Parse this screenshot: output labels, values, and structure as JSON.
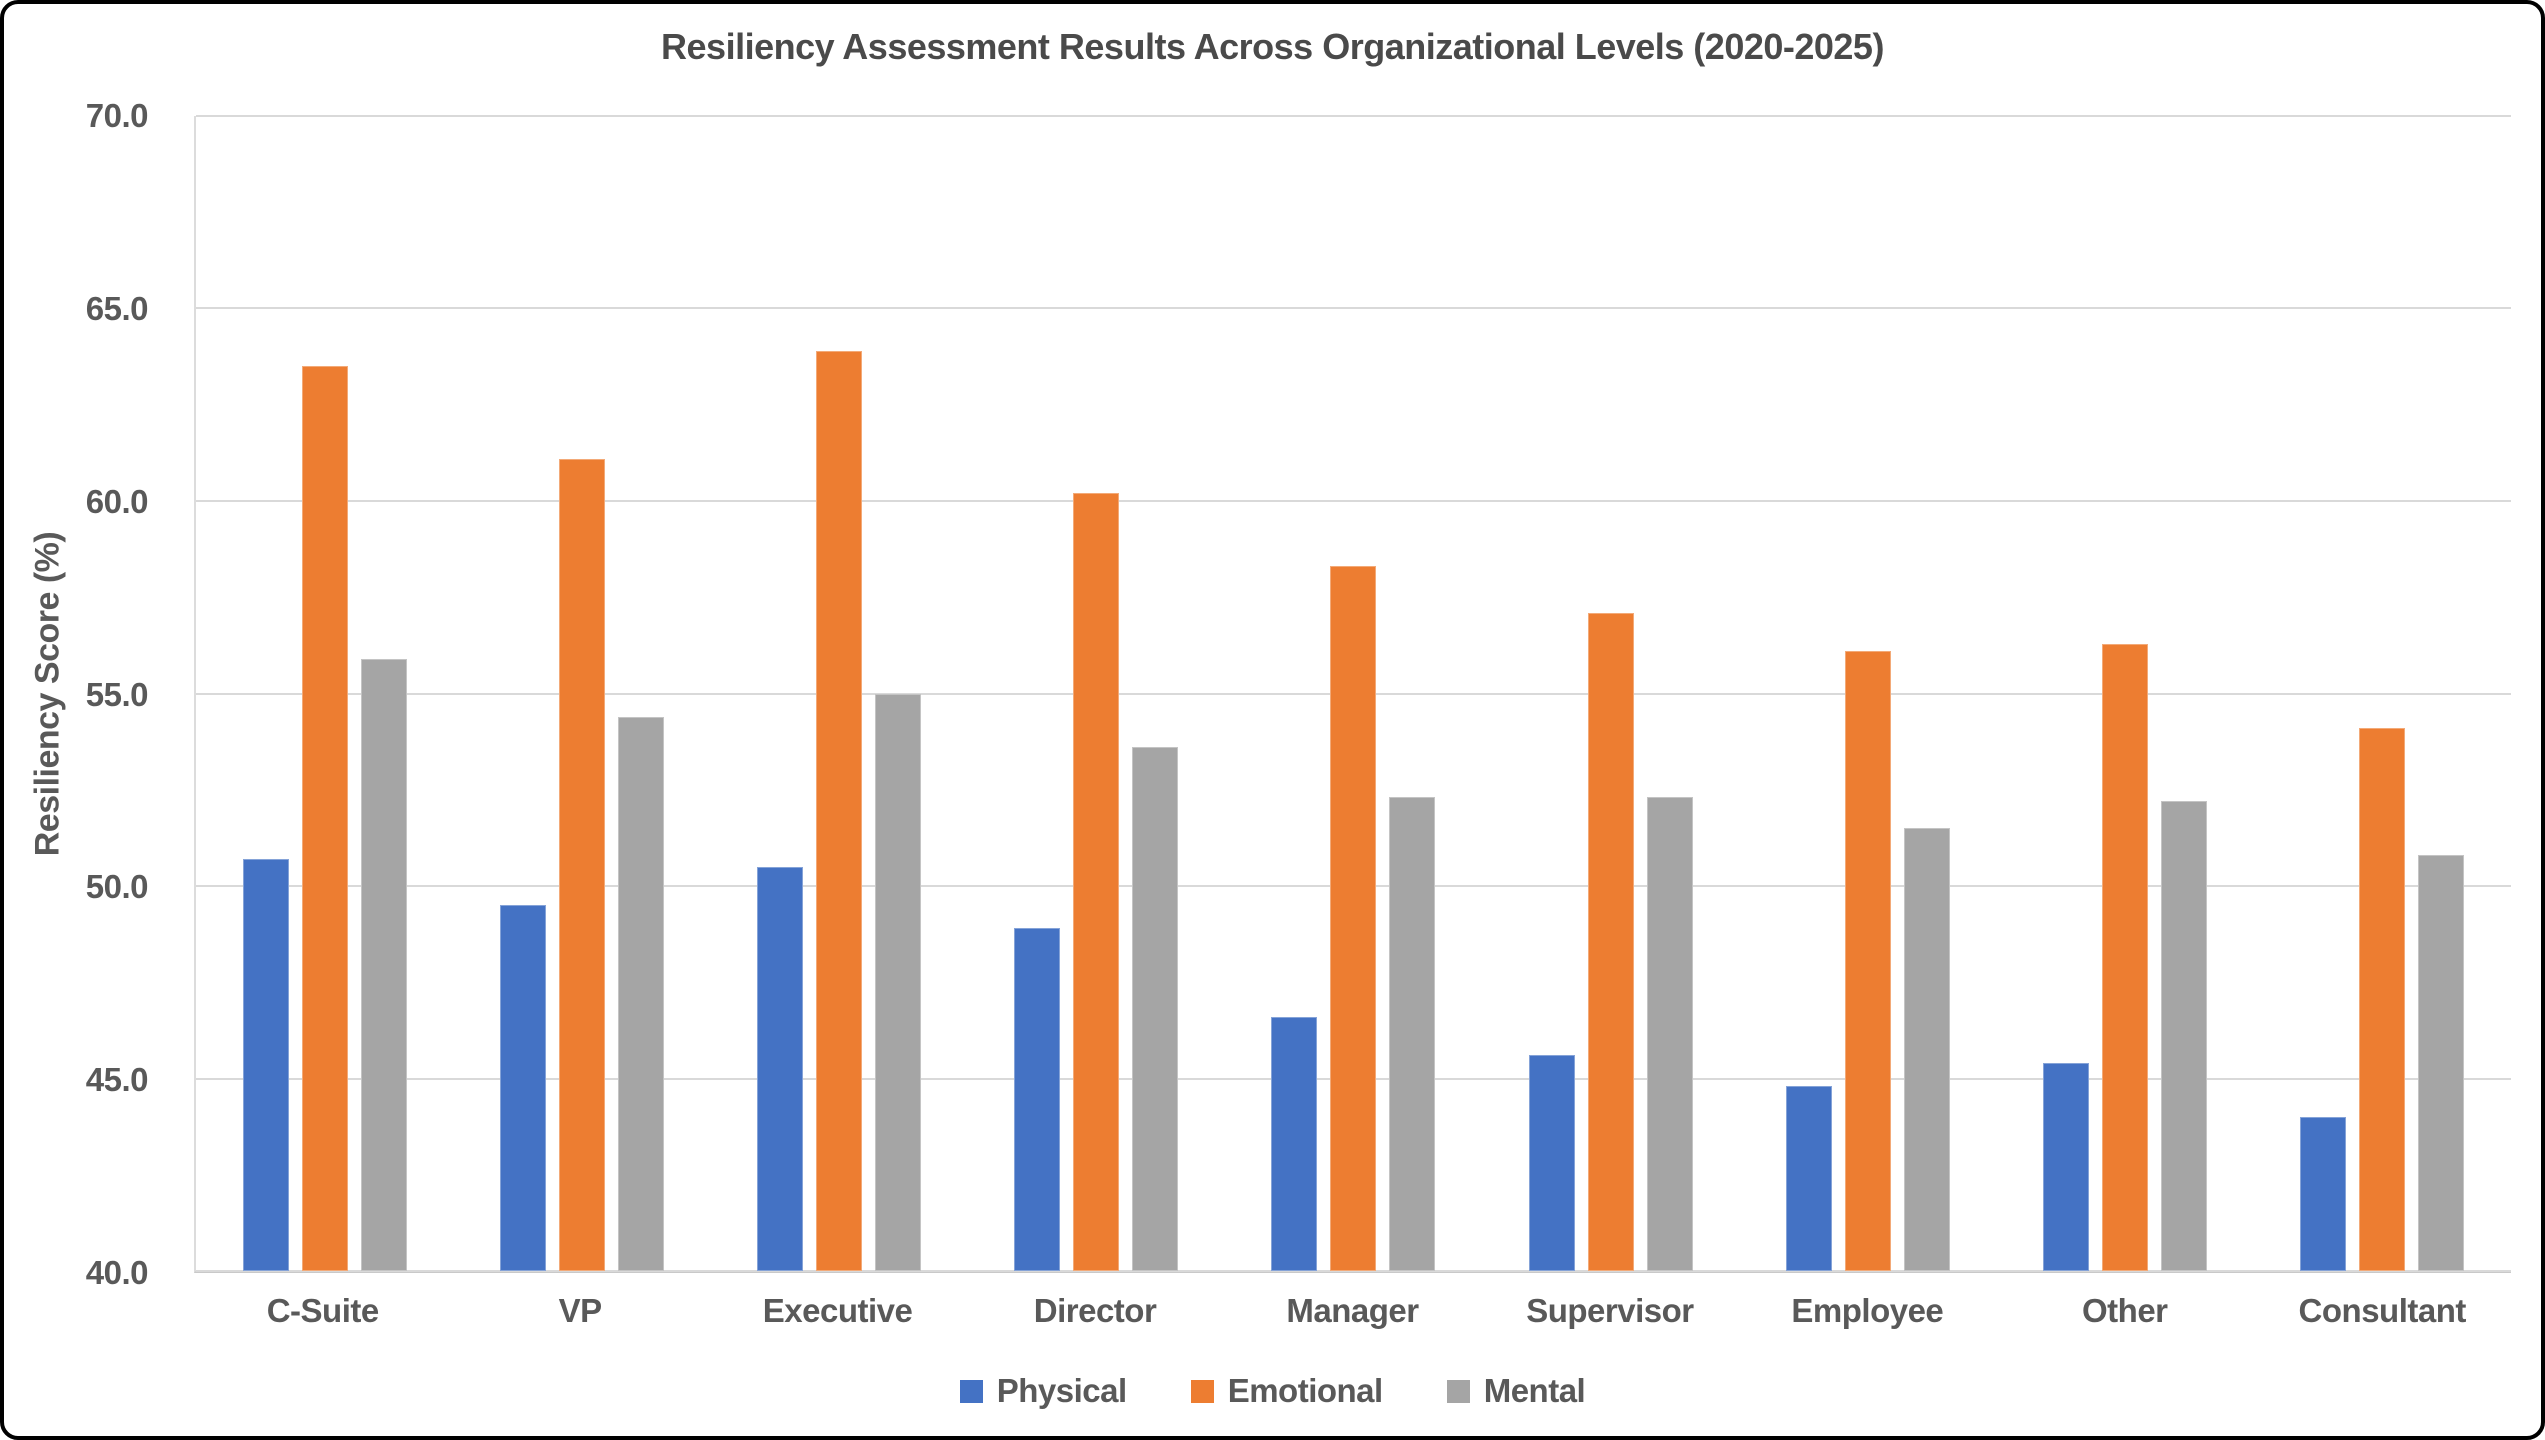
{
  "chart_data": {
    "type": "bar",
    "title": "Resiliency Assessment Results Across Organizational Levels (2020-2025)",
    "ylabel": "Resiliency Score (%)",
    "xlabel": "",
    "categories": [
      "C-Suite",
      "VP",
      "Executive",
      "Director",
      "Manager",
      "Supervisor",
      "Employee",
      "Other",
      "Consultant"
    ],
    "series": [
      {
        "name": "Physical",
        "color": "#4472C4",
        "values": [
          50.7,
          49.5,
          50.5,
          48.9,
          46.6,
          45.6,
          44.8,
          45.4,
          44.0
        ]
      },
      {
        "name": "Emotional",
        "color": "#ED7D31",
        "values": [
          63.5,
          61.1,
          63.9,
          60.2,
          58.3,
          57.1,
          56.1,
          56.3,
          54.1
        ]
      },
      {
        "name": "Mental",
        "color": "#A5A5A5",
        "values": [
          55.9,
          54.4,
          55.0,
          53.6,
          52.3,
          52.3,
          51.5,
          52.2,
          50.8
        ]
      }
    ],
    "ylim": [
      40,
      70
    ],
    "ytick_labels": [
      "70.0",
      "65.0",
      "60.0",
      "55.0",
      "50.0",
      "45.0",
      "40.0"
    ],
    "ytick_values": [
      70,
      65,
      60,
      55,
      50,
      45,
      40
    ],
    "grid": true,
    "legend_position": "bottom",
    "colors": {
      "title_text": "#4a4a4a",
      "axis_text": "#595959",
      "gridline": "#d9d9d9",
      "axis_line": "#c9c9c9",
      "background": "#ffffff",
      "border": "#000000"
    }
  }
}
